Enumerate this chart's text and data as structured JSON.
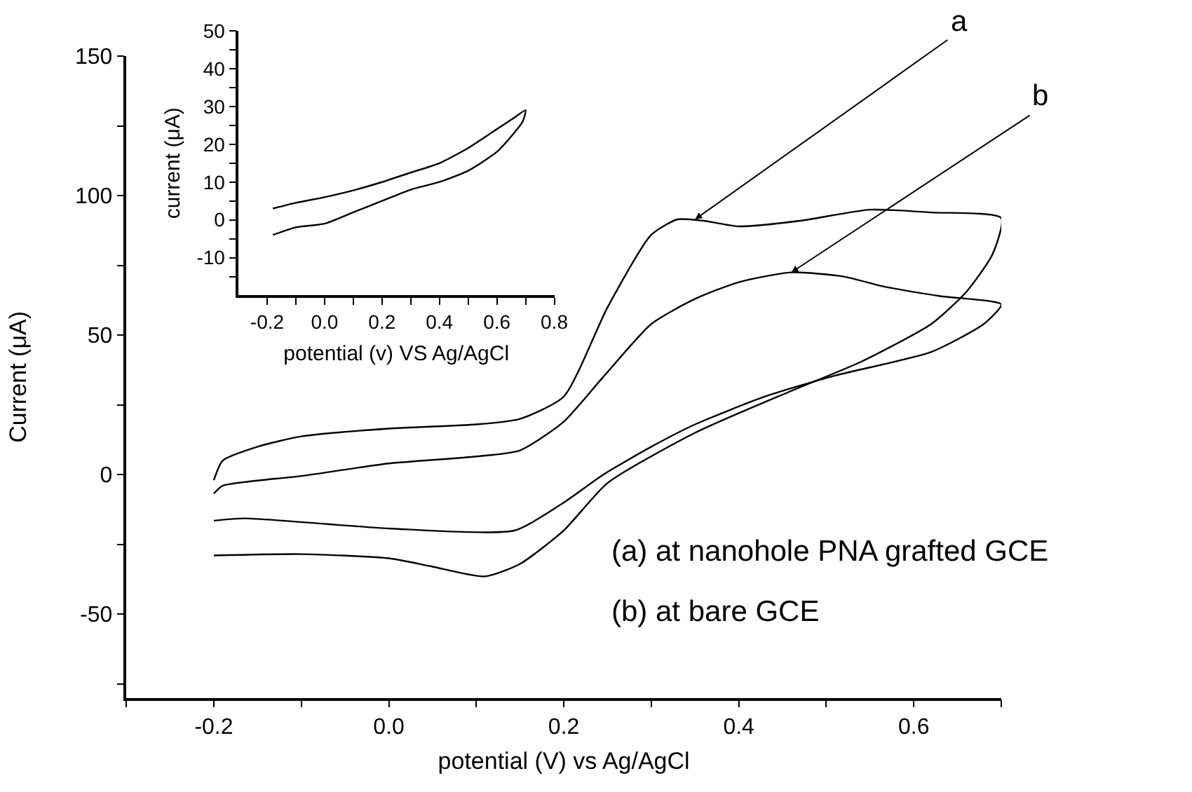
{
  "chart_data": [
    {
      "type": "line",
      "xlabel": "potential (V) vs Ag/AgCl",
      "ylabel": "Current (μA)",
      "xlim": [
        -0.3,
        0.7
      ],
      "ylim": [
        -80,
        150
      ],
      "xticks": [
        {
          "value": -0.3,
          "label": null
        },
        -0.2,
        {
          "value": -0.1,
          "label": null
        },
        {
          "value": 0,
          "label": "0.0"
        },
        {
          "value": 0.1,
          "label": null
        },
        0.2,
        {
          "value": 0.3,
          "label": null
        },
        0.4,
        {
          "value": 0.5,
          "label": null
        },
        0.6,
        {
          "value": 0.7,
          "label": null
        }
      ],
      "yticks": [
        {
          "value": -75,
          "label": null
        },
        -50,
        {
          "value": -25,
          "label": null
        },
        0,
        {
          "value": 25,
          "label": null
        },
        50,
        {
          "value": 75,
          "label": null
        },
        100,
        {
          "value": 125,
          "label": null
        },
        150
      ],
      "marker": "none",
      "line_style": "solid",
      "series": [
        {
          "color": "#000000",
          "x": [
            -0.2,
            -0.19,
            -0.15,
            -0.1,
            0.0,
            0.1,
            0.15,
            0.2,
            0.25,
            0.3,
            0.33,
            0.36,
            0.4,
            0.47,
            0.55,
            0.62,
            0.7,
            0.69,
            0.66,
            0.62,
            0.54,
            0.46,
            0.35,
            0.25,
            0.2,
            0.15,
            0.11,
            0.05,
            0.0,
            -0.1,
            -0.2
          ],
          "values": [
            -2,
            5,
            10,
            13.7,
            16.5,
            18,
            20,
            28,
            60,
            86,
            91.5,
            91,
            89,
            91,
            95,
            94,
            92,
            79,
            65.5,
            54,
            40.5,
            30,
            15,
            -3,
            -20,
            -32,
            -36.5,
            -33,
            -30,
            -28.5,
            -29
          ]
        },
        {
          "color": "#000000",
          "x": [
            -0.2,
            -0.19,
            -0.1,
            0.0,
            0.1,
            0.15,
            0.2,
            0.245,
            0.3,
            0.35,
            0.4,
            0.46,
            0.52,
            0.565,
            0.63,
            0.7,
            0.68,
            0.62,
            0.51,
            0.43,
            0.35,
            0.3,
            0.245,
            0.2,
            0.144,
            0.0,
            -0.165,
            -0.2
          ],
          "values": [
            -6.8,
            -4,
            -0.5,
            4,
            6.5,
            8.7,
            19,
            35,
            54,
            63,
            69,
            72.5,
            71,
            67.5,
            64,
            61,
            54,
            44,
            35.5,
            28,
            18,
            10,
            0,
            -10,
            -20,
            -19.3,
            -15.7,
            -16.5
          ]
        }
      ],
      "annotations": [
        {
          "text": "a",
          "x": 0.35,
          "y": 91.5
        },
        {
          "text": "b",
          "x": 0.46,
          "y": 72.5
        },
        "(a) at nanohole PNA grafted GCE",
        "(b) at bare GCE"
      ]
    },
    {
      "type": "line",
      "xlabel": "potential (v) VS Ag/AgCl",
      "ylabel": "current (μA)",
      "xlim": [
        -0.3,
        0.8
      ],
      "ylim": [
        -20,
        50
      ],
      "xticks": [
        -0.2,
        {
          "value": -0.1,
          "label": null
        },
        {
          "value": 0,
          "label": "0.0"
        },
        {
          "value": 0.1,
          "label": null
        },
        0.2,
        {
          "value": 0.3,
          "label": null
        },
        0.4,
        {
          "value": 0.5,
          "label": null
        },
        0.6,
        {
          "value": 0.7,
          "label": null
        },
        0.8
      ],
      "yticks": [
        {
          "value": -15,
          "label": null
        },
        -10,
        {
          "value": -5,
          "label": null
        },
        0,
        {
          "value": 5,
          "label": null
        },
        10,
        {
          "value": 15,
          "label": null
        },
        20,
        {
          "value": 25,
          "label": null
        },
        30,
        {
          "value": 35,
          "label": null
        },
        40,
        {
          "value": 45,
          "label": null
        },
        50
      ],
      "marker": "none",
      "line_style": "solid",
      "series": [
        {
          "color": "#000000",
          "x": [
            -0.18,
            -0.1,
            0.0,
            0.1,
            0.2,
            0.3,
            0.4,
            0.5,
            0.6,
            0.66,
            0.7,
            0.69,
            0.66,
            0.6,
            0.5,
            0.4,
            0.3,
            0.2,
            0.1,
            0.0,
            -0.1,
            -0.18
          ],
          "values": [
            3,
            4.5,
            6,
            7.8,
            10,
            12.5,
            15,
            19,
            24,
            27,
            29,
            26,
            23,
            18,
            13,
            10,
            8,
            5,
            2,
            -1,
            -2,
            -4
          ]
        }
      ]
    }
  ]
}
